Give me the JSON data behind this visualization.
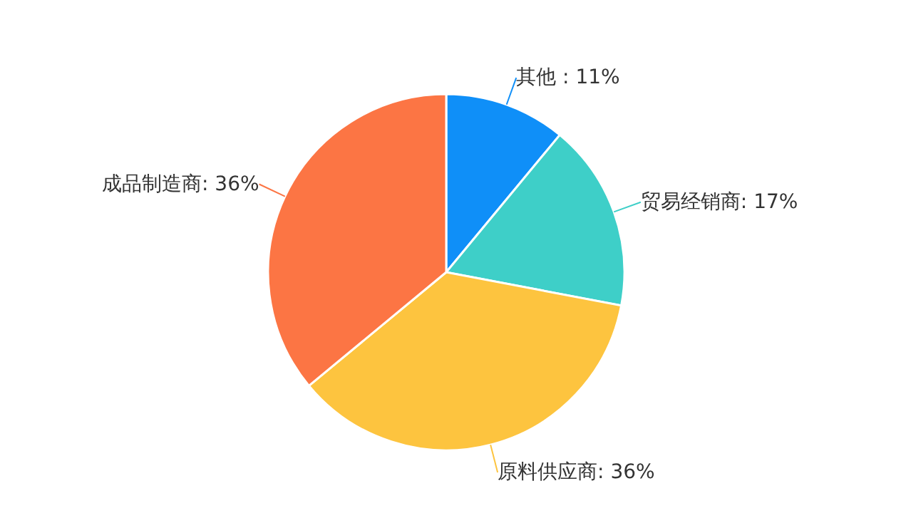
{
  "chart_data": {
    "type": "pie",
    "categories": [
      "其他",
      "贸易经销商",
      "原料供应商",
      "成品制造商"
    ],
    "values": [
      11,
      17,
      36,
      36
    ],
    "value_labels": [
      " : 11%",
      ": 17%",
      ": 36%",
      ": 36%"
    ],
    "colors": [
      "#0f8ff8",
      "#3ecfc8",
      "#fdc43f",
      "#fc7544"
    ],
    "legend": false
  }
}
